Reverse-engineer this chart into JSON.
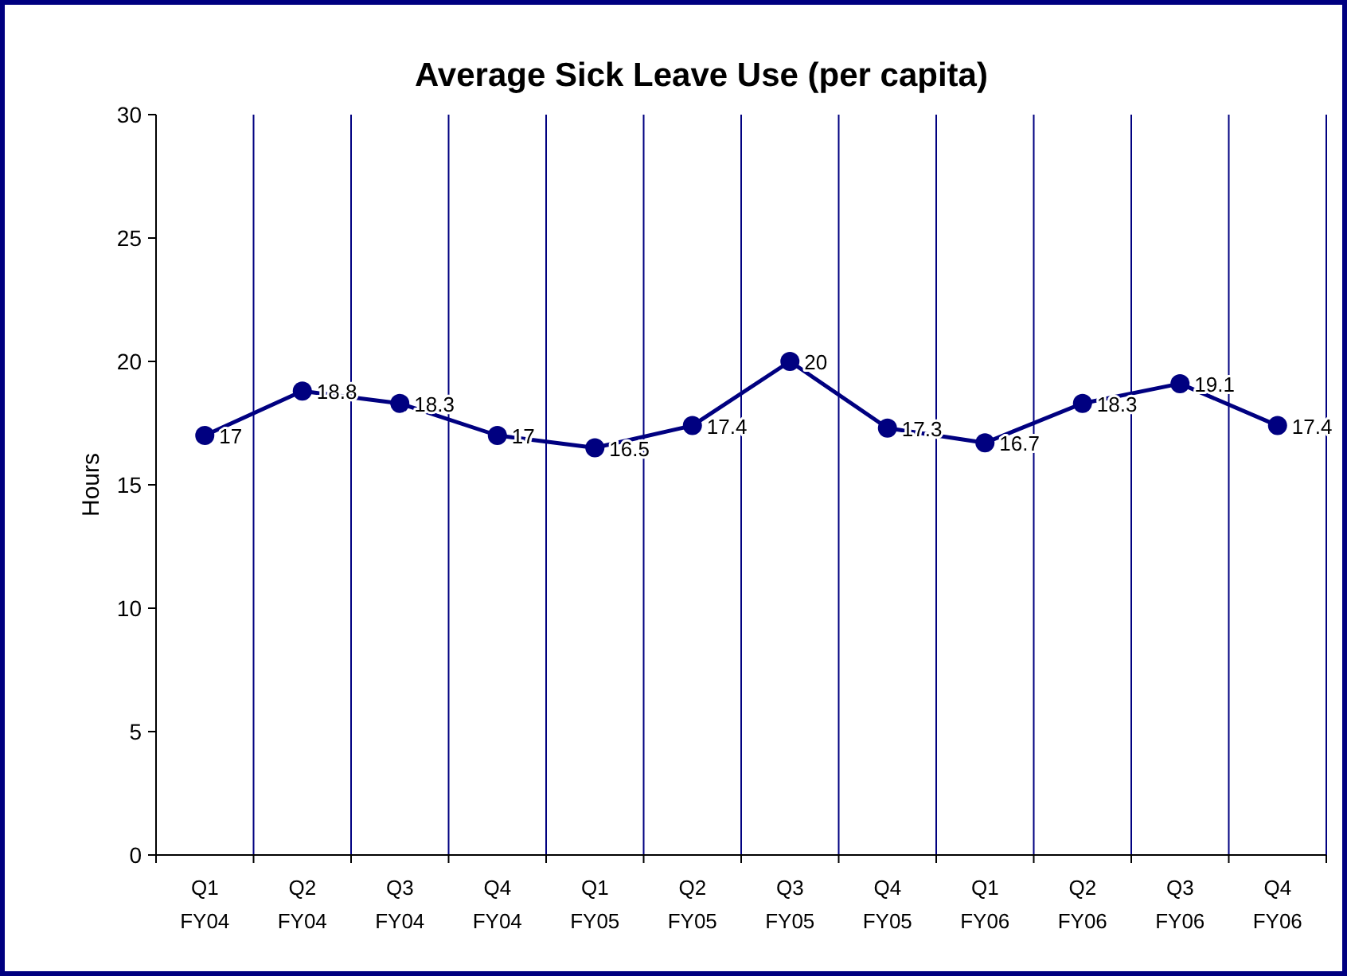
{
  "chart_data": {
    "type": "line",
    "title": "Average Sick Leave Use (per capita)",
    "ylabel": "Hours",
    "categories": [
      "Q1 FY04",
      "Q2 FY04",
      "Q3 FY04",
      "Q4 FY04",
      "Q1 FY05",
      "Q2 FY05",
      "Q3 FY05",
      "Q4 FY05",
      "Q1 FY06",
      "Q2 FY06",
      "Q3 FY06",
      "Q4 FY06"
    ],
    "series": [
      {
        "color": "#000080",
        "values": [
          17,
          18.8,
          18.3,
          17,
          16.5,
          17.4,
          20,
          17.3,
          16.7,
          18.3,
          19.1,
          17.4
        ]
      }
    ],
    "ylim": [
      0,
      30
    ],
    "yticks": [
      0,
      5,
      10,
      15,
      20,
      25,
      30
    ],
    "grid": "x",
    "marker": "circle",
    "line_style": "solid",
    "data_labels": true
  }
}
